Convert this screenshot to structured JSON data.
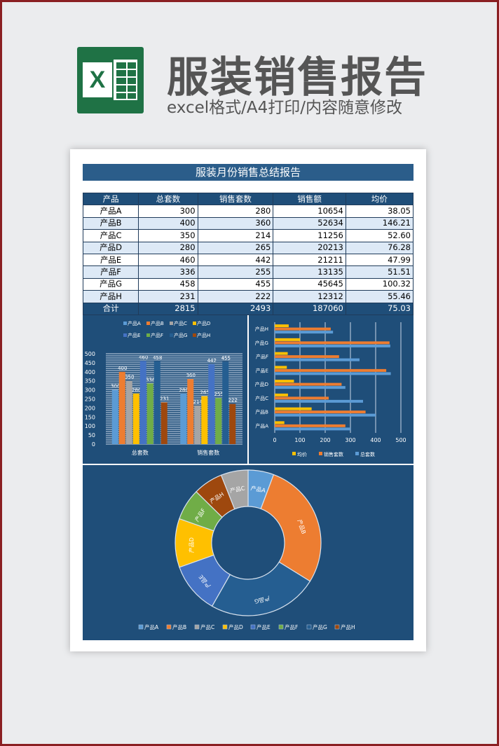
{
  "banner": {
    "title": "服装销售报告",
    "subtitle": "excel格式/A4打印/内容随意修改",
    "logo_letter": "X"
  },
  "report": {
    "title": "服装月份销售总结报告"
  },
  "table": {
    "headers": [
      "产品",
      "总套数",
      "销售套数",
      "销售额",
      "均价"
    ],
    "rows": [
      [
        "产品A",
        "300",
        "280",
        "10654",
        "38.05"
      ],
      [
        "产品B",
        "400",
        "360",
        "52634",
        "146.21"
      ],
      [
        "产品C",
        "350",
        "214",
        "11256",
        "52.60"
      ],
      [
        "产品D",
        "280",
        "265",
        "20213",
        "76.28"
      ],
      [
        "产品E",
        "460",
        "442",
        "21211",
        "47.99"
      ],
      [
        "产品F",
        "336",
        "255",
        "13135",
        "51.51"
      ],
      [
        "产品G",
        "458",
        "455",
        "45645",
        "100.32"
      ],
      [
        "产品H",
        "231",
        "222",
        "12312",
        "55.46"
      ]
    ],
    "total": [
      "合计",
      "2815",
      "2493",
      "187060",
      "75.03"
    ]
  },
  "chart_data": [
    {
      "type": "bar",
      "title": "",
      "categories": [
        "总套数",
        "销售套数"
      ],
      "ylim": [
        0,
        500
      ],
      "yticks": [
        0,
        50,
        100,
        150,
        200,
        250,
        300,
        350,
        400,
        450,
        500
      ],
      "legend": "top",
      "series": [
        {
          "name": "产品A",
          "color": "#5b9bd5",
          "values": [
            300,
            280
          ]
        },
        {
          "name": "产品B",
          "color": "#ed7d31",
          "values": [
            400,
            360
          ]
        },
        {
          "name": "产品C",
          "color": "#a5a5a5",
          "values": [
            350,
            214
          ]
        },
        {
          "name": "产品D",
          "color": "#ffc000",
          "values": [
            280,
            265
          ]
        },
        {
          "name": "产品E",
          "color": "#4472c4",
          "values": [
            460,
            442
          ]
        },
        {
          "name": "产品F",
          "color": "#70ad47",
          "values": [
            336,
            255
          ]
        },
        {
          "name": "产品G",
          "color": "#255e91",
          "values": [
            458,
            455
          ]
        },
        {
          "name": "产品H",
          "color": "#9e480e",
          "values": [
            231,
            222
          ]
        }
      ]
    },
    {
      "type": "bar",
      "orientation": "horizontal",
      "categories": [
        "产品A",
        "产品B",
        "产品C",
        "产品D",
        "产品E",
        "产品F",
        "产品G",
        "产品H"
      ],
      "xlim": [
        0,
        500
      ],
      "xticks": [
        0,
        100,
        200,
        300,
        400,
        500
      ],
      "legend": "bottom",
      "series": [
        {
          "name": "均价",
          "color": "#ffc000",
          "values": [
            38.05,
            146.21,
            52.6,
            76.28,
            47.99,
            51.51,
            100.32,
            55.46
          ]
        },
        {
          "name": "销售套数",
          "color": "#ed7d31",
          "values": [
            280,
            360,
            214,
            265,
            442,
            255,
            455,
            222
          ]
        },
        {
          "name": "总套数",
          "color": "#5b9bd5",
          "values": [
            300,
            400,
            350,
            280,
            460,
            336,
            458,
            231
          ]
        }
      ]
    },
    {
      "type": "pie",
      "donut": true,
      "legend": "bottom",
      "legend_order": [
        "产品A",
        "产品B",
        "产品C",
        "产品D",
        "产品E",
        "产品F",
        "产品G",
        "产品H"
      ],
      "slices": [
        {
          "name": "产品A",
          "value": 10654,
          "color": "#5b9bd5"
        },
        {
          "name": "产品B",
          "value": 52634,
          "color": "#ed7d31"
        },
        {
          "name": "产品G",
          "value": 45645,
          "color": "#255e91"
        },
        {
          "name": "产品E",
          "value": 21211,
          "color": "#4472c4"
        },
        {
          "name": "产品D",
          "value": 20213,
          "color": "#ffc000"
        },
        {
          "name": "产品F",
          "value": 13135,
          "color": "#70ad47"
        },
        {
          "name": "产品H",
          "value": 12312,
          "color": "#9e480e"
        },
        {
          "name": "产品C",
          "value": 11256,
          "color": "#a5a5a5"
        }
      ]
    }
  ]
}
